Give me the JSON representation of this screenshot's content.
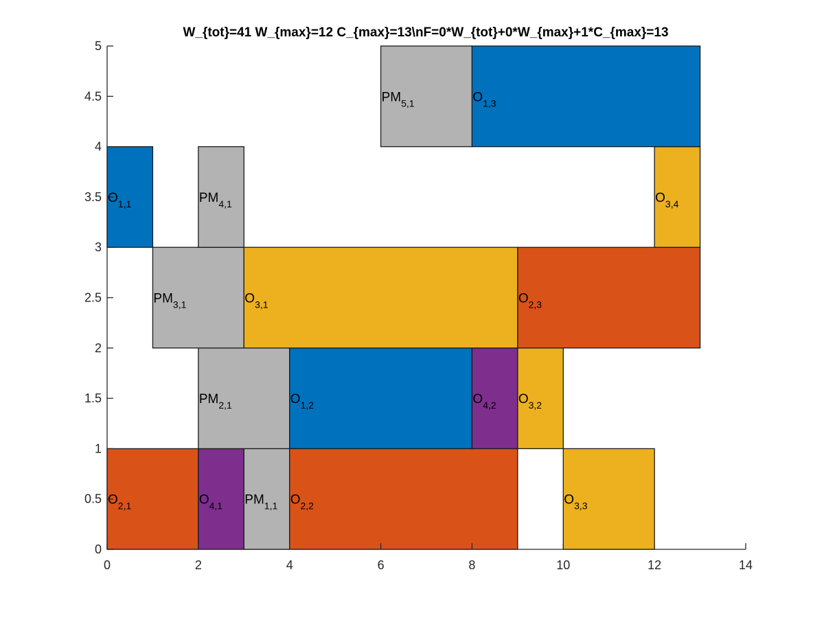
{
  "chart_data": {
    "type": "gantt",
    "title": "W_{tot}=41  W_{max}=12  C_{max}=13\\nF=0*W_{tot}+0*W_{max}+1*C_{max}=13",
    "xlim": [
      0,
      14
    ],
    "ylim": [
      0,
      5
    ],
    "x_ticks": [
      "0",
      "2",
      "4",
      "6",
      "8",
      "10",
      "12",
      "14"
    ],
    "y_ticks": [
      "0",
      "0.5",
      "1",
      "1.5",
      "2",
      "2.5",
      "3",
      "3.5",
      "4",
      "4.5",
      "5"
    ],
    "colors": {
      "job1": "#0072BD",
      "job2": "#D95319",
      "job3": "#EDB120",
      "job4": "#7E2F8E",
      "pm": "#B3B3B3"
    },
    "bars": [
      {
        "machine": 1,
        "start": 0,
        "end": 2,
        "base": "O",
        "sub": "2,1",
        "color": "job2"
      },
      {
        "machine": 1,
        "start": 2,
        "end": 3,
        "base": "O",
        "sub": "4,1",
        "color": "job4"
      },
      {
        "machine": 1,
        "start": 3,
        "end": 4,
        "base": "PM",
        "sub": "1,1",
        "color": "pm"
      },
      {
        "machine": 1,
        "start": 4,
        "end": 9,
        "base": "O",
        "sub": "2,2",
        "color": "job2"
      },
      {
        "machine": 1,
        "start": 10,
        "end": 12,
        "base": "O",
        "sub": "3,3",
        "color": "job3"
      },
      {
        "machine": 2,
        "start": 2,
        "end": 4,
        "base": "PM",
        "sub": "2,1",
        "color": "pm"
      },
      {
        "machine": 2,
        "start": 4,
        "end": 8,
        "base": "O",
        "sub": "1,2",
        "color": "job1"
      },
      {
        "machine": 2,
        "start": 8,
        "end": 9,
        "base": "O",
        "sub": "4,2",
        "color": "job4"
      },
      {
        "machine": 2,
        "start": 9,
        "end": 10,
        "base": "O",
        "sub": "3,2",
        "color": "job3"
      },
      {
        "machine": 3,
        "start": 1,
        "end": 3,
        "base": "PM",
        "sub": "3,1",
        "color": "pm"
      },
      {
        "machine": 3,
        "start": 3,
        "end": 9,
        "base": "O",
        "sub": "3,1",
        "color": "job3"
      },
      {
        "machine": 3,
        "start": 9,
        "end": 13,
        "base": "O",
        "sub": "2,3",
        "color": "job2"
      },
      {
        "machine": 4,
        "start": 0,
        "end": 1,
        "base": "O",
        "sub": "1,1",
        "color": "job1"
      },
      {
        "machine": 4,
        "start": 2,
        "end": 3,
        "base": "PM",
        "sub": "4,1",
        "color": "pm"
      },
      {
        "machine": 4,
        "start": 12,
        "end": 13,
        "base": "O",
        "sub": "3,4",
        "color": "job3"
      },
      {
        "machine": 5,
        "start": 6,
        "end": 8,
        "base": "PM",
        "sub": "5,1",
        "color": "pm"
      },
      {
        "machine": 5,
        "start": 8,
        "end": 13,
        "base": "O",
        "sub": "1,3",
        "color": "job1"
      }
    ]
  }
}
